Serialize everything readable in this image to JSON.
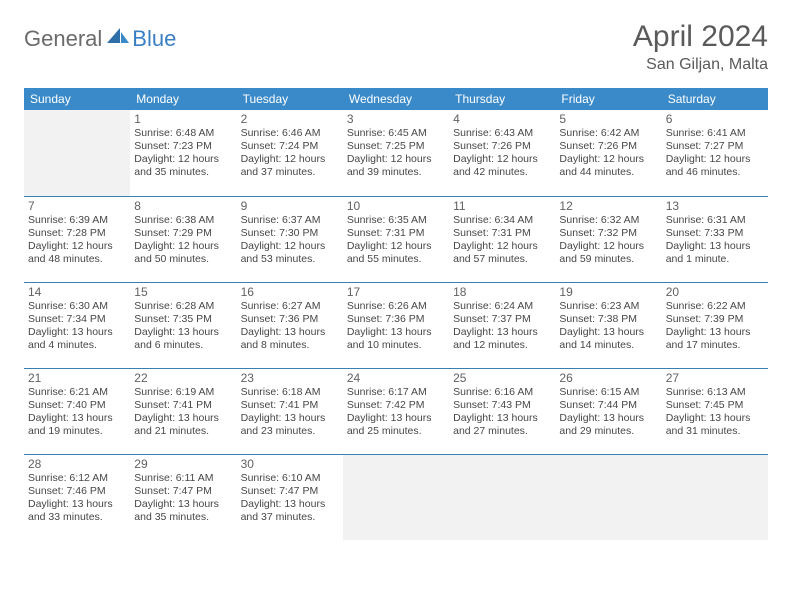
{
  "logo": {
    "general": "General",
    "blue": "Blue"
  },
  "title": "April 2024",
  "location": "San Giljan, Malta",
  "colors": {
    "header_bg": "#3a8ac9",
    "header_text": "#ffffff",
    "rule": "#3a7fb0",
    "empty_bg": "#f2f2f2",
    "text": "#474747",
    "title_text": "#5a5a5a",
    "logo_gray": "#6b6b6b",
    "logo_blue": "#3a7fc4"
  },
  "weekdays": [
    "Sunday",
    "Monday",
    "Tuesday",
    "Wednesday",
    "Thursday",
    "Friday",
    "Saturday"
  ],
  "weeks": [
    [
      null,
      {
        "n": "1",
        "sr": "6:48 AM",
        "ss": "7:23 PM",
        "dl": "12 hours and 35 minutes."
      },
      {
        "n": "2",
        "sr": "6:46 AM",
        "ss": "7:24 PM",
        "dl": "12 hours and 37 minutes."
      },
      {
        "n": "3",
        "sr": "6:45 AM",
        "ss": "7:25 PM",
        "dl": "12 hours and 39 minutes."
      },
      {
        "n": "4",
        "sr": "6:43 AM",
        "ss": "7:26 PM",
        "dl": "12 hours and 42 minutes."
      },
      {
        "n": "5",
        "sr": "6:42 AM",
        "ss": "7:26 PM",
        "dl": "12 hours and 44 minutes."
      },
      {
        "n": "6",
        "sr": "6:41 AM",
        "ss": "7:27 PM",
        "dl": "12 hours and 46 minutes."
      }
    ],
    [
      {
        "n": "7",
        "sr": "6:39 AM",
        "ss": "7:28 PM",
        "dl": "12 hours and 48 minutes."
      },
      {
        "n": "8",
        "sr": "6:38 AM",
        "ss": "7:29 PM",
        "dl": "12 hours and 50 minutes."
      },
      {
        "n": "9",
        "sr": "6:37 AM",
        "ss": "7:30 PM",
        "dl": "12 hours and 53 minutes."
      },
      {
        "n": "10",
        "sr": "6:35 AM",
        "ss": "7:31 PM",
        "dl": "12 hours and 55 minutes."
      },
      {
        "n": "11",
        "sr": "6:34 AM",
        "ss": "7:31 PM",
        "dl": "12 hours and 57 minutes."
      },
      {
        "n": "12",
        "sr": "6:32 AM",
        "ss": "7:32 PM",
        "dl": "12 hours and 59 minutes."
      },
      {
        "n": "13",
        "sr": "6:31 AM",
        "ss": "7:33 PM",
        "dl": "13 hours and 1 minute."
      }
    ],
    [
      {
        "n": "14",
        "sr": "6:30 AM",
        "ss": "7:34 PM",
        "dl": "13 hours and 4 minutes."
      },
      {
        "n": "15",
        "sr": "6:28 AM",
        "ss": "7:35 PM",
        "dl": "13 hours and 6 minutes."
      },
      {
        "n": "16",
        "sr": "6:27 AM",
        "ss": "7:36 PM",
        "dl": "13 hours and 8 minutes."
      },
      {
        "n": "17",
        "sr": "6:26 AM",
        "ss": "7:36 PM",
        "dl": "13 hours and 10 minutes."
      },
      {
        "n": "18",
        "sr": "6:24 AM",
        "ss": "7:37 PM",
        "dl": "13 hours and 12 minutes."
      },
      {
        "n": "19",
        "sr": "6:23 AM",
        "ss": "7:38 PM",
        "dl": "13 hours and 14 minutes."
      },
      {
        "n": "20",
        "sr": "6:22 AM",
        "ss": "7:39 PM",
        "dl": "13 hours and 17 minutes."
      }
    ],
    [
      {
        "n": "21",
        "sr": "6:21 AM",
        "ss": "7:40 PM",
        "dl": "13 hours and 19 minutes."
      },
      {
        "n": "22",
        "sr": "6:19 AM",
        "ss": "7:41 PM",
        "dl": "13 hours and 21 minutes."
      },
      {
        "n": "23",
        "sr": "6:18 AM",
        "ss": "7:41 PM",
        "dl": "13 hours and 23 minutes."
      },
      {
        "n": "24",
        "sr": "6:17 AM",
        "ss": "7:42 PM",
        "dl": "13 hours and 25 minutes."
      },
      {
        "n": "25",
        "sr": "6:16 AM",
        "ss": "7:43 PM",
        "dl": "13 hours and 27 minutes."
      },
      {
        "n": "26",
        "sr": "6:15 AM",
        "ss": "7:44 PM",
        "dl": "13 hours and 29 minutes."
      },
      {
        "n": "27",
        "sr": "6:13 AM",
        "ss": "7:45 PM",
        "dl": "13 hours and 31 minutes."
      }
    ],
    [
      {
        "n": "28",
        "sr": "6:12 AM",
        "ss": "7:46 PM",
        "dl": "13 hours and 33 minutes."
      },
      {
        "n": "29",
        "sr": "6:11 AM",
        "ss": "7:47 PM",
        "dl": "13 hours and 35 minutes."
      },
      {
        "n": "30",
        "sr": "6:10 AM",
        "ss": "7:47 PM",
        "dl": "13 hours and 37 minutes."
      },
      null,
      null,
      null,
      null
    ]
  ],
  "labels": {
    "sunrise": "Sunrise: ",
    "sunset": "Sunset: ",
    "daylight": "Daylight: "
  }
}
